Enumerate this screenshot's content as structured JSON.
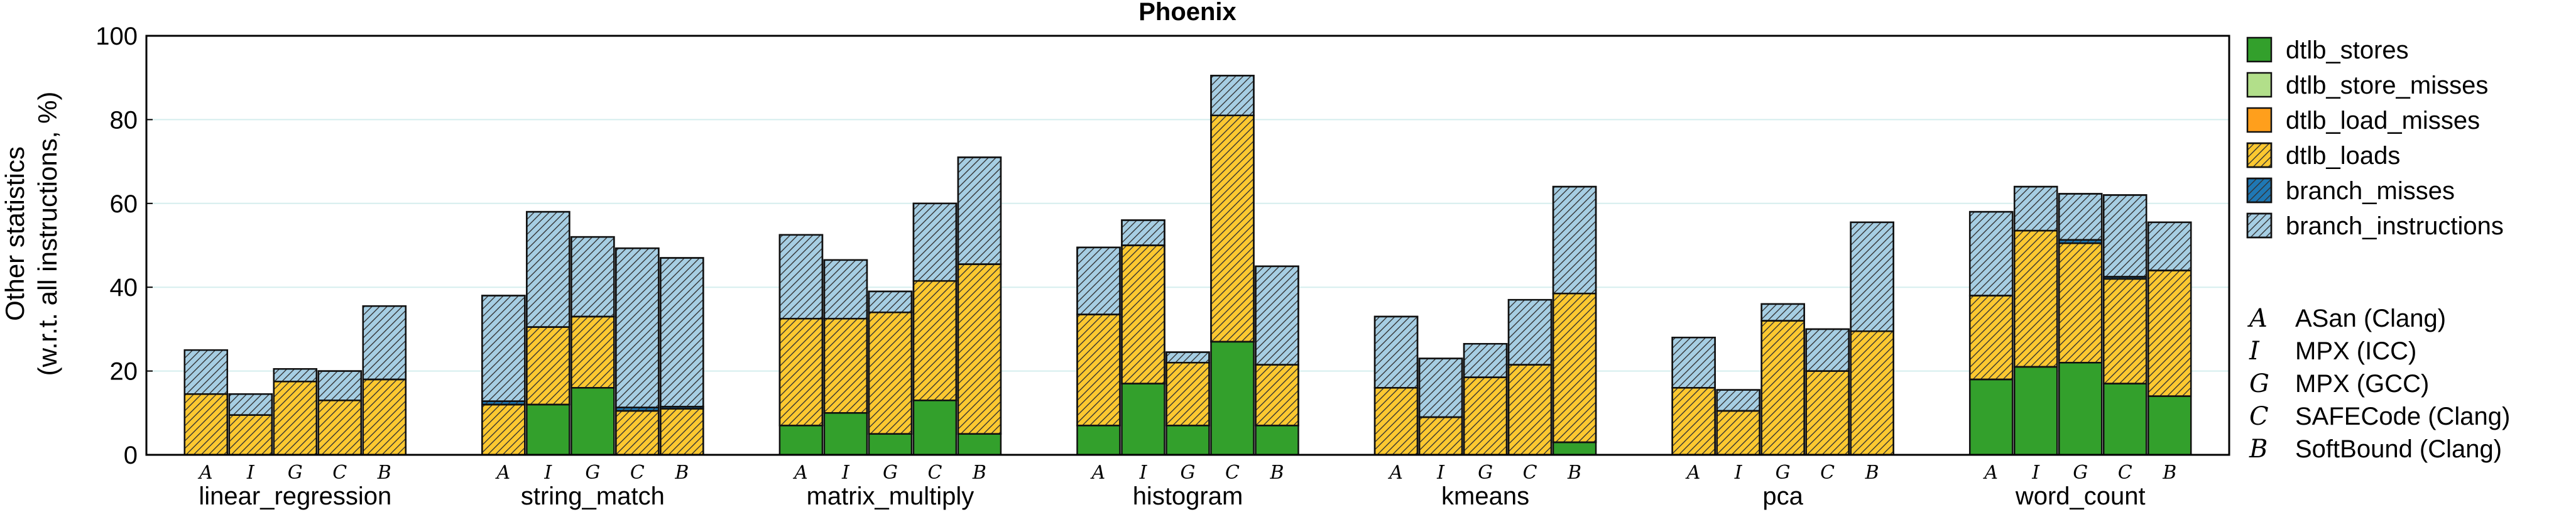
{
  "chart_data": {
    "type": "bar",
    "title": "Phoenix",
    "ylabel_lines": [
      "Other statistics",
      "(w.r.t. all instructions, %)"
    ],
    "ylim": [
      0,
      100
    ],
    "yticks": [
      0,
      20,
      40,
      60,
      80,
      100
    ],
    "grid": true,
    "stacked": true,
    "legend_position": "right",
    "groups": [
      "linear_regression",
      "string_match",
      "matrix_multiply",
      "histogram",
      "kmeans",
      "pca",
      "word_count"
    ],
    "bar_letters": [
      "A",
      "I",
      "G",
      "C",
      "B"
    ],
    "variants": [
      {
        "letter": "A",
        "label": "ASan (Clang)"
      },
      {
        "letter": "I",
        "label": "MPX (ICC)"
      },
      {
        "letter": "G",
        "label": "MPX (GCC)"
      },
      {
        "letter": "C",
        "label": "SAFECode (Clang)"
      },
      {
        "letter": "B",
        "label": "SoftBound (Clang)"
      }
    ],
    "series": [
      {
        "name": "dtlb_stores",
        "color": "#33a02c",
        "hatch": false,
        "values": [
          [
            0,
            0,
            0,
            0,
            0
          ],
          [
            0,
            12,
            16,
            0,
            0
          ],
          [
            7,
            10,
            5,
            13,
            5
          ],
          [
            7,
            17,
            7,
            27,
            7
          ],
          [
            0,
            0,
            0,
            0,
            3
          ],
          [
            0,
            0,
            0,
            0,
            0
          ],
          [
            18,
            21,
            22,
            17,
            14
          ]
        ]
      },
      {
        "name": "dtlb_store_misses",
        "color": "#b2df8a",
        "hatch": false,
        "values": [
          [
            0,
            0,
            0,
            0,
            0
          ],
          [
            0,
            0,
            0,
            0,
            0
          ],
          [
            0,
            0,
            0,
            0,
            0
          ],
          [
            0,
            0,
            0,
            0,
            0
          ],
          [
            0,
            0,
            0,
            0,
            0
          ],
          [
            0,
            0,
            0,
            0,
            0
          ],
          [
            0,
            0,
            0,
            0,
            0
          ]
        ]
      },
      {
        "name": "dtlb_load_misses",
        "color": "#ff9f1c",
        "hatch": false,
        "values": [
          [
            0,
            0,
            0,
            0,
            0
          ],
          [
            0,
            0,
            0,
            0,
            0
          ],
          [
            0,
            0,
            0,
            0,
            0
          ],
          [
            0,
            0,
            0,
            0,
            0
          ],
          [
            0,
            0,
            0,
            0,
            0
          ],
          [
            0,
            0,
            0,
            0,
            0
          ],
          [
            0,
            0,
            0,
            0,
            0
          ]
        ]
      },
      {
        "name": "dtlb_loads",
        "color": "#fcc830",
        "hatch": true,
        "values": [
          [
            14.5,
            9.5,
            17.5,
            13,
            18
          ],
          [
            12,
            18.5,
            17,
            10.5,
            11
          ],
          [
            25.5,
            22.5,
            29,
            28.5,
            40.5
          ],
          [
            26.5,
            33,
            15,
            54,
            14.5
          ],
          [
            16,
            9,
            18.5,
            21.5,
            35.5
          ],
          [
            16,
            10.5,
            32,
            20,
            29.5
          ],
          [
            20,
            32.5,
            28.5,
            25,
            30
          ]
        ]
      },
      {
        "name": "branch_misses",
        "color": "#1f78b4",
        "hatch": true,
        "values": [
          [
            0,
            0,
            0,
            0,
            0
          ],
          [
            0.8,
            0,
            0,
            0.8,
            0.5
          ],
          [
            0,
            0,
            0,
            0,
            0
          ],
          [
            0,
            0,
            0,
            0,
            0
          ],
          [
            0,
            0,
            0,
            0,
            0
          ],
          [
            0,
            0,
            0,
            0,
            0
          ],
          [
            0,
            0,
            0.8,
            0.5,
            0
          ]
        ]
      },
      {
        "name": "branch_instructions",
        "color": "#a6cee3",
        "hatch": true,
        "values": [
          [
            10.5,
            5,
            3,
            7,
            17.5
          ],
          [
            25.2,
            27.5,
            19,
            38,
            35.5
          ],
          [
            20,
            14,
            5,
            18.5,
            25.5
          ],
          [
            16,
            6,
            2.5,
            9.5,
            23.5
          ],
          [
            17,
            14,
            8,
            15.5,
            25.5
          ],
          [
            12,
            5,
            4,
            10,
            26
          ],
          [
            20,
            10.5,
            11,
            19.5,
            11.5
          ]
        ]
      }
    ]
  }
}
